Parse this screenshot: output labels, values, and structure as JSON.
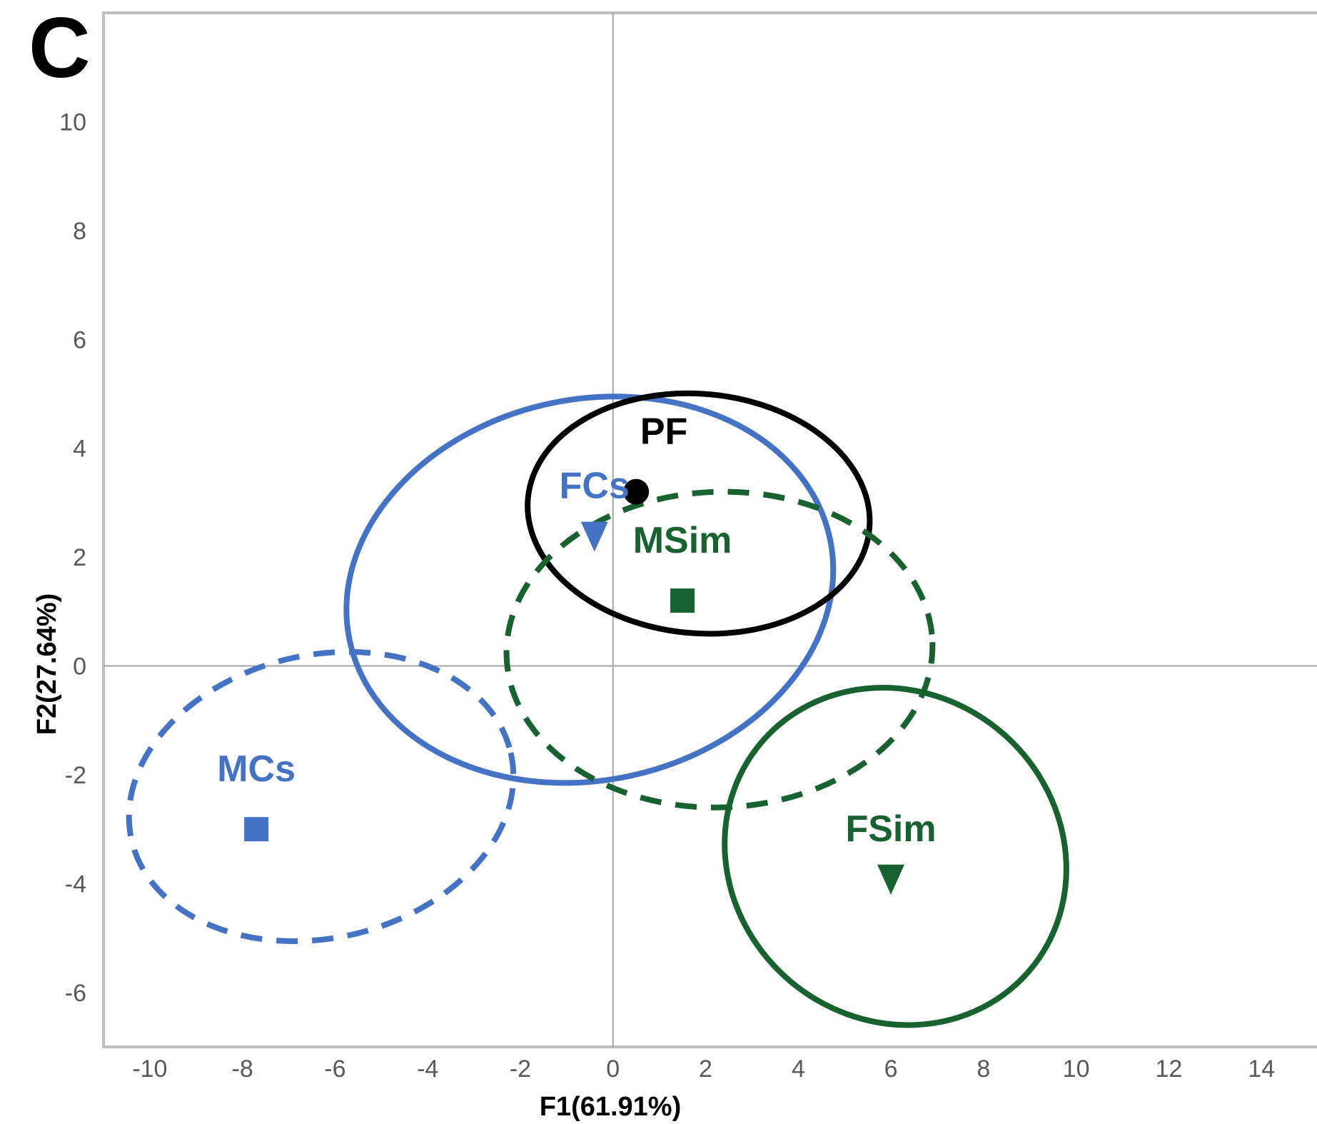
{
  "panel_label": "C",
  "colors": {
    "black": "#000000",
    "blue": "#4472C4",
    "green": "#17622F",
    "frame": "#BFBFBF",
    "zero": "#A6A6A6",
    "tick": "#595959"
  },
  "chart_data": {
    "type": "scatter",
    "xlabel": "F1(61.91%)",
    "ylabel": "F2(27.64%)",
    "xlim": [
      -11,
      15.2
    ],
    "ylim": [
      -7,
      12
    ],
    "xticks": [
      "-10",
      "-8",
      "-6",
      "-4",
      "-2",
      "0",
      "2",
      "4",
      "6",
      "8",
      "10",
      "12",
      "14"
    ],
    "yticks": [
      "-6",
      "-4",
      "-2",
      "0",
      "2",
      "4",
      "6",
      "8",
      "10"
    ],
    "grid": false,
    "points": [
      {
        "name": "PF",
        "x": 0.5,
        "y": 3.2,
        "marker": "circle",
        "color": "#000000",
        "label_dx": 0.6,
        "label_dy": 0.75
      },
      {
        "name": "FCs",
        "x": -0.4,
        "y": 2.4,
        "marker": "triangle",
        "color": "#4472C4",
        "label_dx": 0.0,
        "label_dy": 0.55
      },
      {
        "name": "MSim",
        "x": 1.5,
        "y": 1.2,
        "marker": "square",
        "color": "#17622F",
        "label_dx": 0.0,
        "label_dy": 0.75
      },
      {
        "name": "MCs",
        "x": -7.7,
        "y": -3.0,
        "marker": "square",
        "color": "#4472C4",
        "label_dx": 0.0,
        "label_dy": 0.75
      },
      {
        "name": "FSim",
        "x": 6.0,
        "y": -3.9,
        "marker": "triangle",
        "color": "#17622F",
        "label_dx": 0.0,
        "label_dy": 0.55
      }
    ],
    "ellipses": [
      {
        "group": "FCs",
        "cx": -0.5,
        "cy": 1.4,
        "rx": 5.3,
        "ry": 3.5,
        "angle": 12,
        "color": "#4472C4",
        "dashed": false
      },
      {
        "group": "PF",
        "cx": 1.85,
        "cy": 2.8,
        "rx": 3.7,
        "ry": 2.2,
        "angle": -5,
        "color": "#000000",
        "dashed": false
      },
      {
        "group": "MSim",
        "cx": 2.3,
        "cy": 0.3,
        "rx": 4.6,
        "ry": 2.9,
        "angle": 2,
        "color": "#17622F",
        "dashed": true
      },
      {
        "group": "MCs",
        "cx": -6.3,
        "cy": -2.4,
        "rx": 4.2,
        "ry": 2.6,
        "angle": 13,
        "color": "#4472C4",
        "dashed": true
      },
      {
        "group": "FSim",
        "cx": 6.1,
        "cy": -3.5,
        "rx": 3.8,
        "ry": 3.0,
        "angle": -40,
        "color": "#17622F",
        "dashed": false
      }
    ]
  }
}
